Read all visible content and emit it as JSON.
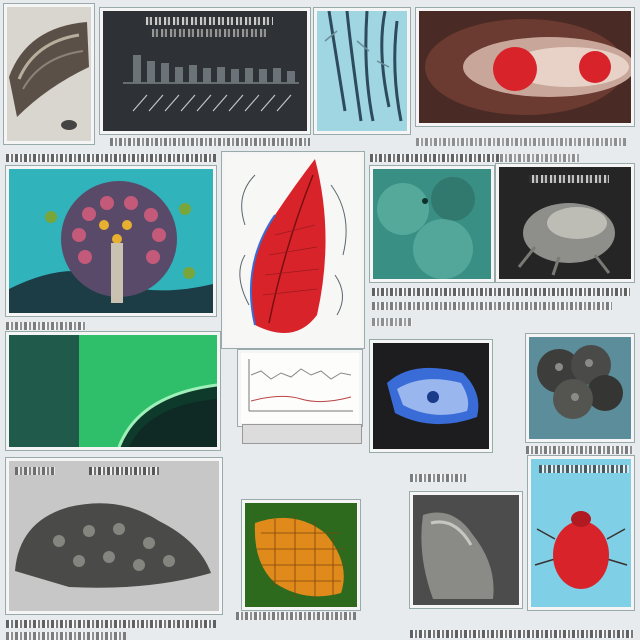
{
  "labels": {
    "fig_top_left": "",
    "fig_bottom_mid": ""
  },
  "colors": {
    "teal": "#2bb8c4",
    "red": "#d8232a",
    "green": "#2fbf6a",
    "orange": "#e08a1c",
    "blue": "#3a6cd8",
    "dark_panel": "#2e3236"
  },
  "panels": [
    {
      "name": "shell-micrograph"
    },
    {
      "name": "bar-chart-panel"
    },
    {
      "name": "blue-fiber-panel"
    },
    {
      "name": "red-cell-panel"
    },
    {
      "name": "flower-organism-panel"
    },
    {
      "name": "red-leaf-diagram"
    },
    {
      "name": "teal-tissue-panel"
    },
    {
      "name": "dark-organism-panel"
    },
    {
      "name": "green-tissue-panel"
    },
    {
      "name": "line-graph-panel"
    },
    {
      "name": "blue-cell-panel"
    },
    {
      "name": "grey-sponge-panel"
    },
    {
      "name": "grey-rock-specimen"
    },
    {
      "name": "orange-mesh-panel"
    },
    {
      "name": "grey-tooth-panel"
    },
    {
      "name": "red-mite-panel"
    }
  ]
}
